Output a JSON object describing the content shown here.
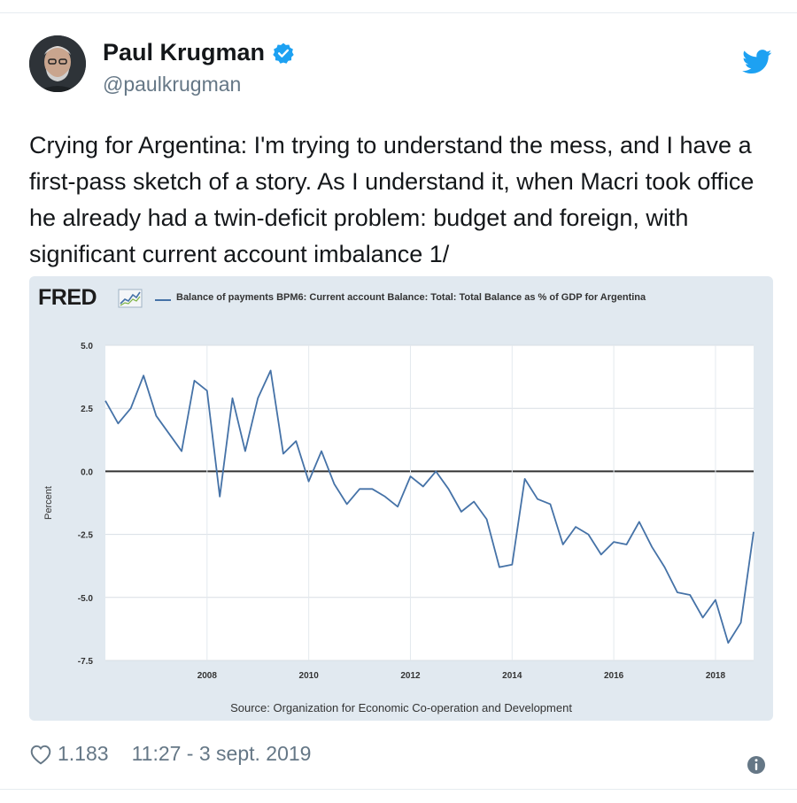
{
  "tweet": {
    "author_name": "Paul Krugman",
    "author_handle": "@paulkrugman",
    "text": "Crying for Argentina: I'm trying to understand the mess, and I have a first-pass sketch of a story. As I understand it, when Macri took office he already had a twin-deficit problem: budget and foreign, with significant current account imbalance 1/",
    "likes": "1.183",
    "timestamp": "11:27 - 3 sept. 2019"
  },
  "icons": {
    "verified": "verified-badge-icon",
    "bird": "twitter-bird-icon",
    "heart": "heart-icon",
    "info": "info-icon"
  },
  "colors": {
    "twitter_blue": "#1da1f2",
    "series_blue": "#4572a7",
    "chart_bg": "#e1e9f0"
  },
  "chart": {
    "logo": "FRED",
    "legend": "Balance of payments BPM6: Current account Balance: Total: Total Balance as % of GDP for Argentina",
    "source": "Source: Organization for Economic Co-operation and Development"
  },
  "chart_data": {
    "type": "line",
    "ylabel": "Percent",
    "ylim": [
      -7.5,
      5.0
    ],
    "y_ticks": [
      "5.0",
      "2.5",
      "0.0",
      "-2.5",
      "-5.0",
      "-7.5"
    ],
    "y_tick_values": [
      5.0,
      2.5,
      0.0,
      -2.5,
      -5.0,
      -7.5
    ],
    "xlim": [
      2006.0,
      2018.75
    ],
    "x_ticks": [
      "2008",
      "2010",
      "2012",
      "2014",
      "2016",
      "2018"
    ],
    "x_tick_values": [
      2008,
      2010,
      2012,
      2014,
      2016,
      2018
    ],
    "grid": true,
    "zero_line": true,
    "series": [
      {
        "name": "Balance of payments BPM6: Current account Balance: Total: Total Balance as % of GDP for Argentina",
        "x": [
          2006.0,
          2006.25,
          2006.5,
          2006.75,
          2007.0,
          2007.25,
          2007.5,
          2007.75,
          2008.0,
          2008.25,
          2008.5,
          2008.75,
          2009.0,
          2009.25,
          2009.5,
          2009.75,
          2010.0,
          2010.25,
          2010.5,
          2010.75,
          2011.0,
          2011.25,
          2011.5,
          2011.75,
          2012.0,
          2012.25,
          2012.5,
          2012.75,
          2013.0,
          2013.25,
          2013.5,
          2013.75,
          2014.0,
          2014.25,
          2014.5,
          2014.75,
          2015.0,
          2015.25,
          2015.5,
          2015.75,
          2016.0,
          2016.25,
          2016.5,
          2016.75,
          2017.0,
          2017.25,
          2017.5,
          2017.75,
          2018.0,
          2018.25,
          2018.5,
          2018.75
        ],
        "values": [
          2.8,
          1.9,
          2.5,
          3.8,
          2.2,
          1.5,
          0.8,
          3.6,
          3.2,
          -1.0,
          2.9,
          0.8,
          2.9,
          4.0,
          0.7,
          1.2,
          -0.4,
          0.8,
          -0.5,
          -1.3,
          -0.7,
          -0.7,
          -1.0,
          -1.4,
          -0.2,
          -0.6,
          0.0,
          -0.7,
          -1.6,
          -1.2,
          -1.9,
          -3.8,
          -3.7,
          -0.3,
          -1.1,
          -1.3,
          -2.9,
          -2.2,
          -2.5,
          -3.3,
          -2.8,
          -2.9,
          -2.0,
          -3.0,
          -3.8,
          -4.8,
          -4.9,
          -5.8,
          -5.1,
          -6.8,
          -6.0,
          -2.4
        ]
      }
    ]
  }
}
